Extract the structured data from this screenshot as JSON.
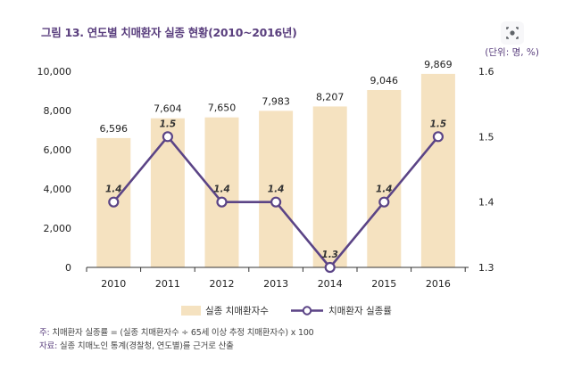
{
  "figure": {
    "title": "그림 13. 연도별 치매환자 실종 현황(2010~2016년)",
    "unit_label": "(단위: 명, %)",
    "note_prefix": "주:",
    "note_text": "치매환자 실종률 = (실종 치매환자수 ÷ 65세 이상 추정 치매환자수) x 100",
    "source_prefix": "자료:",
    "source_text": "실종 치매노인 통계(경찰청, 연도별)를 근거로 산출",
    "lens_icon": "lens-icon"
  },
  "chart_data": {
    "type": "bar+line",
    "categories": [
      "2010",
      "2011",
      "2012",
      "2013",
      "2014",
      "2015",
      "2016"
    ],
    "series": [
      {
        "name": "실종 치매환자수",
        "type": "bar",
        "axis": "left",
        "values": [
          6596,
          7604,
          7650,
          7983,
          8207,
          9046,
          9869
        ],
        "labels": [
          "6,596",
          "7,604",
          "7,650",
          "7,983",
          "8,207",
          "9,046",
          "9,869"
        ],
        "color": "#f5e2c0"
      },
      {
        "name": "치매환자 실종률",
        "type": "line",
        "axis": "right",
        "values": [
          1.4,
          1.5,
          1.4,
          1.4,
          1.3,
          1.4,
          1.5
        ],
        "labels": [
          "1.4",
          "1.5",
          "1.4",
          "1.4",
          "1.3",
          "1.4",
          "1.5"
        ],
        "color": "#5b4486"
      }
    ],
    "y_left": {
      "lim": [
        0,
        10000
      ],
      "ticks": [
        0,
        2000,
        4000,
        6000,
        8000,
        10000
      ],
      "tick_labels": [
        "0",
        "2,000",
        "4,000",
        "6,000",
        "8,000",
        "10,000"
      ]
    },
    "y_right": {
      "lim": [
        1.3,
        1.6
      ],
      "ticks": [
        1.3,
        1.4,
        1.5,
        1.6
      ],
      "tick_labels": [
        "1.3",
        "1.4",
        "1.5",
        "1.6"
      ]
    },
    "legend": [
      "실종 치매환자수",
      "치매환자 실종률"
    ],
    "legend_position": "bottom-center",
    "grid": false
  }
}
